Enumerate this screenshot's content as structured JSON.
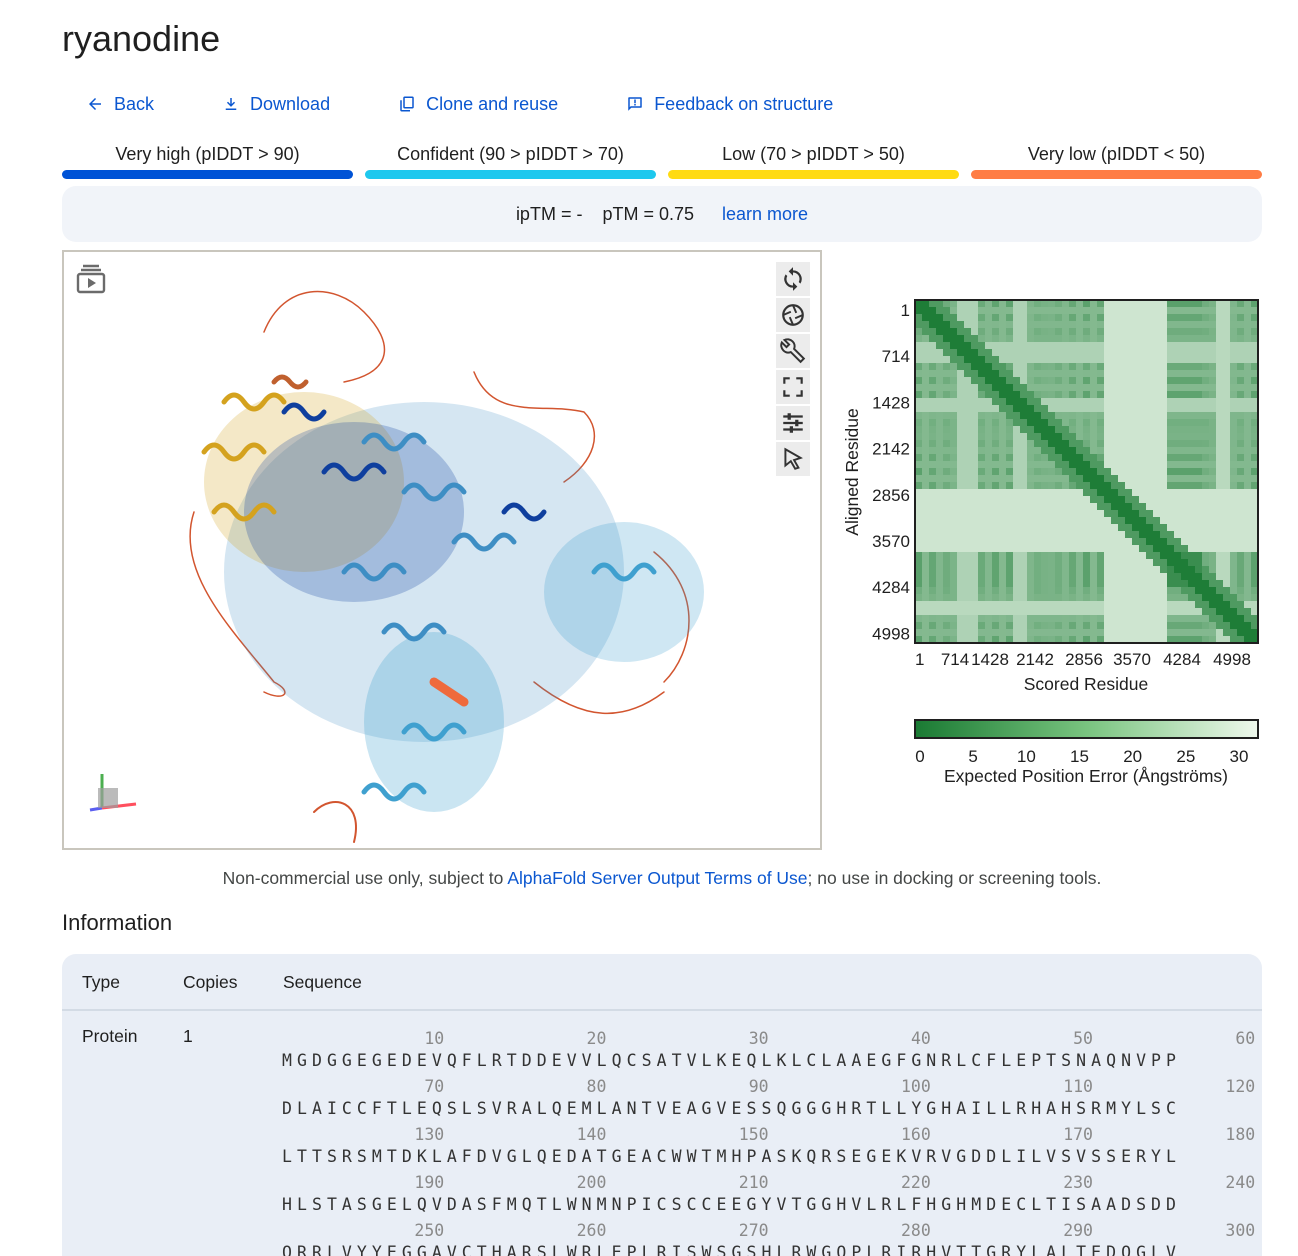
{
  "title": "ryanodine",
  "toolbar": {
    "back": "Back",
    "download": "Download",
    "clone": "Clone and reuse",
    "feedback": "Feedback on structure"
  },
  "legend": [
    {
      "label": "Very high (pIDDT > 90)",
      "color": "#0053d6"
    },
    {
      "label": "Confident (90 > pIDDT > 70)",
      "color": "#1ec8ee"
    },
    {
      "label": "Low (70 > pIDDT > 50)",
      "color": "#ffdb13"
    },
    {
      "label": "Very low (pIDDT < 50)",
      "color": "#ff7d45"
    }
  ],
  "metrics": {
    "iptm": "ipTM = -",
    "ptm": "pTM = 0.75",
    "learn_more": "learn more"
  },
  "viewer_tools": [
    "play-icon",
    "rotate-icon",
    "camera-icon",
    "wrench-icon",
    "fullscreen-icon",
    "settings-icon",
    "select-icon"
  ],
  "pae": {
    "y_label": "Aligned Residue",
    "x_label": "Scored Residue",
    "ticks": [
      "1",
      "714",
      "1428",
      "2142",
      "2856",
      "3570",
      "4284",
      "4998"
    ],
    "colorbar_ticks": [
      "0",
      "5",
      "10",
      "15",
      "20",
      "25",
      "30"
    ],
    "colorbar_label": "Expected Position Error (Ångströms)"
  },
  "notice": {
    "before": "Non-commercial use only, subject to ",
    "link": "AlphaFold Server Output Terms of Use",
    "after": "; no use in docking or screening tools."
  },
  "information": {
    "title": "Information",
    "headers": {
      "type": "Type",
      "copies": "Copies",
      "sequence": "Sequence"
    },
    "row": {
      "type": "Protein",
      "copies": "1"
    },
    "sequence_blocks": [
      {
        "nums": [
          "10",
          "20",
          "30",
          "40",
          "50",
          "60"
        ],
        "seq": "MGDGGEGEDEVQFLRTDDEVVLQCSATVLKEQLKLCLAAEGFGNRLCFLEPTSNAQNVPP"
      },
      {
        "nums": [
          "70",
          "80",
          "90",
          "100",
          "110",
          "120"
        ],
        "seq": "DLAICCFTLEQSLSVRALQEMLANTVEAGVESSQGGGHRTLLYGHAILLRHAHSRMYLSC"
      },
      {
        "nums": [
          "130",
          "140",
          "150",
          "160",
          "170",
          "180"
        ],
        "seq": "LTTSRSMTDKLAFDVGLQEDATGEACWWTMHPASKQRSEGEKVRVGDDLILVSVSSERYL"
      },
      {
        "nums": [
          "190",
          "200",
          "210",
          "220",
          "230",
          "240"
        ],
        "seq": "HLSTASGELQVDASFMQTLWNMNPICSCCEEGYVTGGHVLRLFHGHMDECLTISAADSDD"
      },
      {
        "nums": [
          "250",
          "260",
          "270",
          "280",
          "290",
          "300"
        ],
        "seq": "QRRLVYYEGGAVCTHARSLWRLEPLRISWSGSHLRWGQPLRIRHVTTGRYLALTEDQGLV"
      }
    ]
  }
}
